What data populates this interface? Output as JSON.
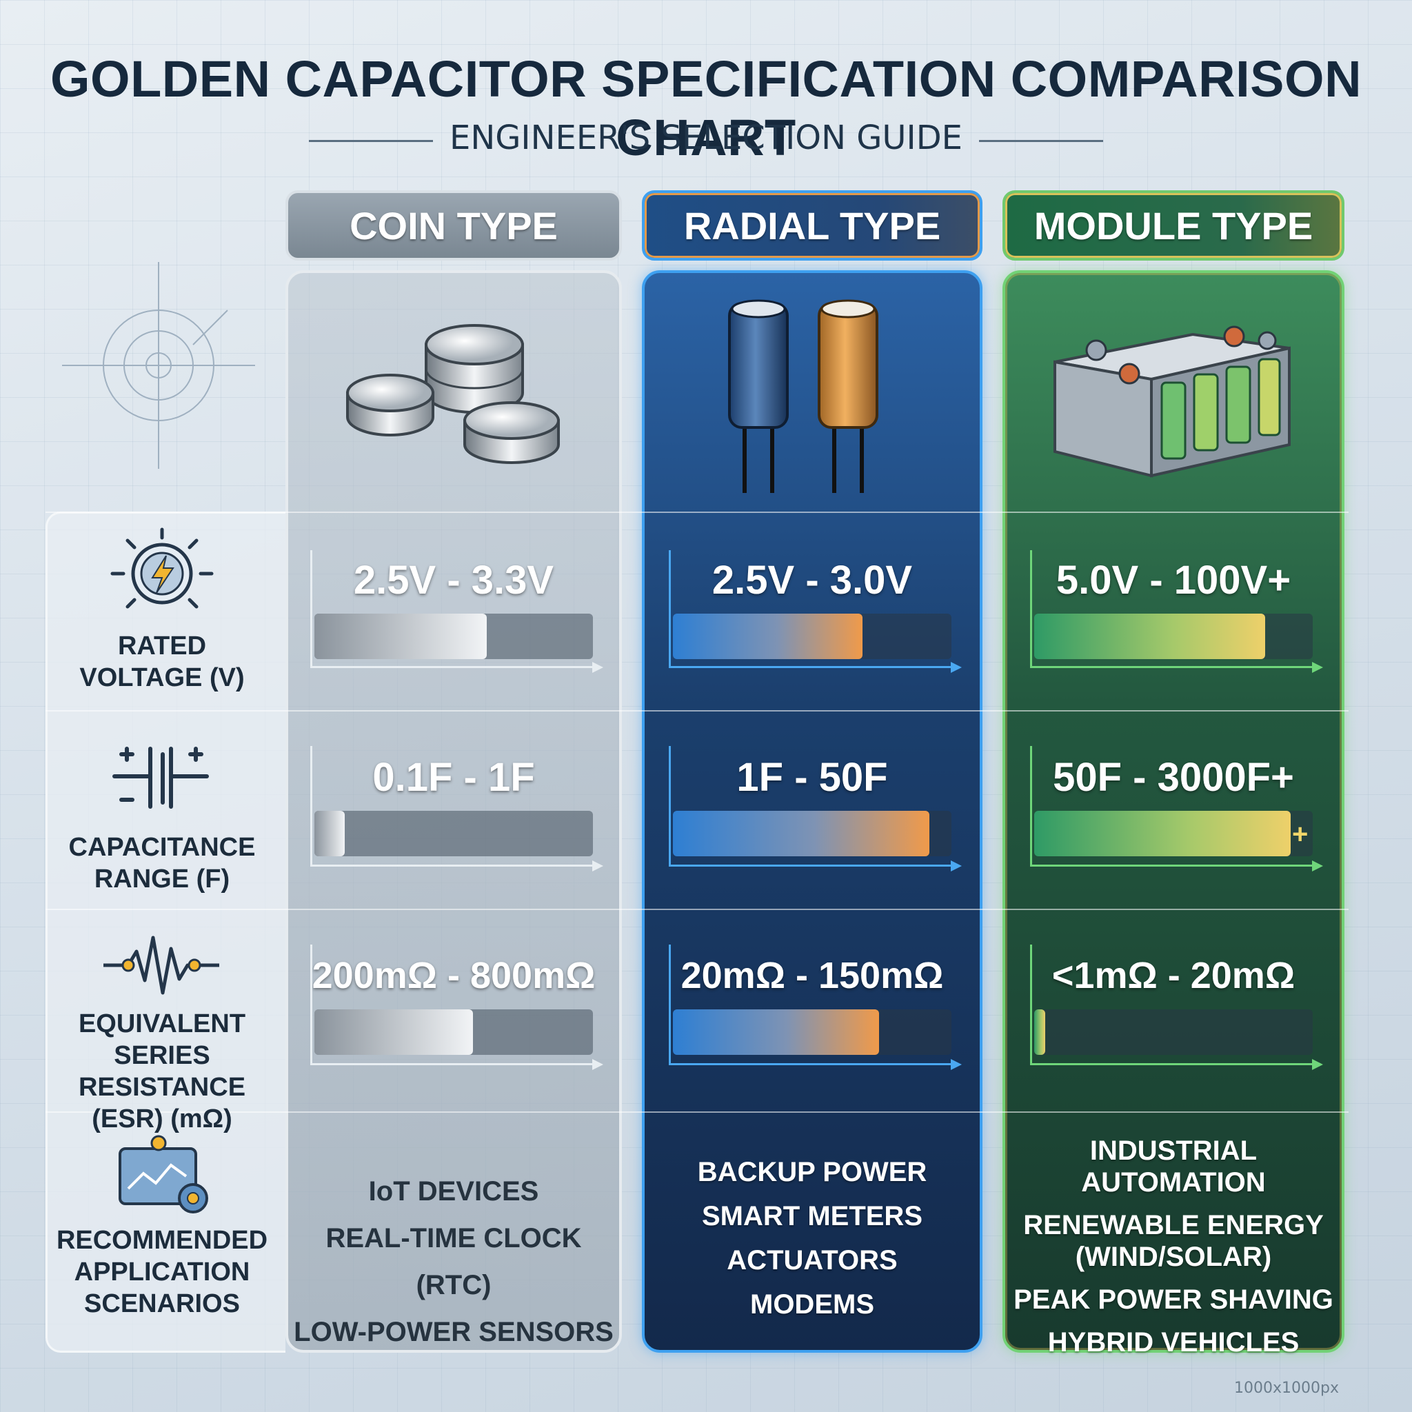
{
  "title": "GOLDEN CAPACITOR SPECIFICATION COMPARISON CHART",
  "subtitle": "ENGINEER'S SELECTION GUIDE",
  "columns": [
    {
      "name": "COIN TYPE",
      "image": "coin-cells-icon"
    },
    {
      "name": "RADIAL TYPE",
      "image": "radial-capacitors-icon"
    },
    {
      "name": "MODULE TYPE",
      "image": "capacitor-module-icon"
    }
  ],
  "rows": {
    "voltage": {
      "label_1": "RATED",
      "label_2": "VOLTAGE (V)",
      "icon": "lightning-gauge-icon"
    },
    "capacitance": {
      "label_1": "CAPACITANCE",
      "label_2": "RANGE (F)",
      "icon": "capacitor-symbol-icon"
    },
    "esr": {
      "label_1": "EQUIVALENT",
      "label_2": "SERIES RESISTANCE",
      "label_3": "(ESR) (mΩ)",
      "icon": "resistor-wave-icon"
    },
    "apps": {
      "label_1": "RECOMMENDED",
      "label_2": "APPLICATION",
      "label_3": "SCENARIOS",
      "icon": "dashboard-icon"
    }
  },
  "chart_data": {
    "type": "bar",
    "categories": [
      "COIN TYPE",
      "RADIAL TYPE",
      "MODULE TYPE"
    ],
    "series": [
      {
        "name": "RATED VOLTAGE (V)",
        "labels": [
          "2.5V - 3.3V",
          "2.5V - 3.0V",
          "5.0V - 100V+"
        ],
        "relative_fill": [
          0.62,
          0.68,
          0.83
        ]
      },
      {
        "name": "CAPACITANCE RANGE (F)",
        "labels": [
          "0.1F - 1F",
          "1F - 50F",
          "50F - 3000F+"
        ],
        "relative_fill": [
          0.11,
          0.92,
          0.92
        ]
      },
      {
        "name": "EQUIVALENT SERIES RESISTANCE (ESR) (mΩ)",
        "labels": [
          "200mΩ - 800mΩ",
          "20mΩ - 150mΩ",
          "<1mΩ - 20mΩ"
        ],
        "relative_fill": [
          0.57,
          0.74,
          0.04
        ]
      }
    ],
    "extra_marker": "+"
  },
  "applications": {
    "coin": [
      "IoT DEVICES",
      "REAL-TIME CLOCK (RTC)",
      "LOW-POWER SENSORS"
    ],
    "radial": [
      "BACKUP POWER",
      "SMART METERS",
      "ACTUATORS",
      "MODEMS"
    ],
    "module": [
      "INDUSTRIAL AUTOMATION",
      "RENEWABLE ENERGY",
      "(WIND/SOLAR)",
      "PEAK POWER SHAVING",
      "HYBRID VEHICLES"
    ]
  },
  "footer": "1000x1000px",
  "colors": {
    "coin": "#9aa6b1",
    "radial": "#3ea0f0",
    "module": "#72d276",
    "title": "#16293d"
  }
}
